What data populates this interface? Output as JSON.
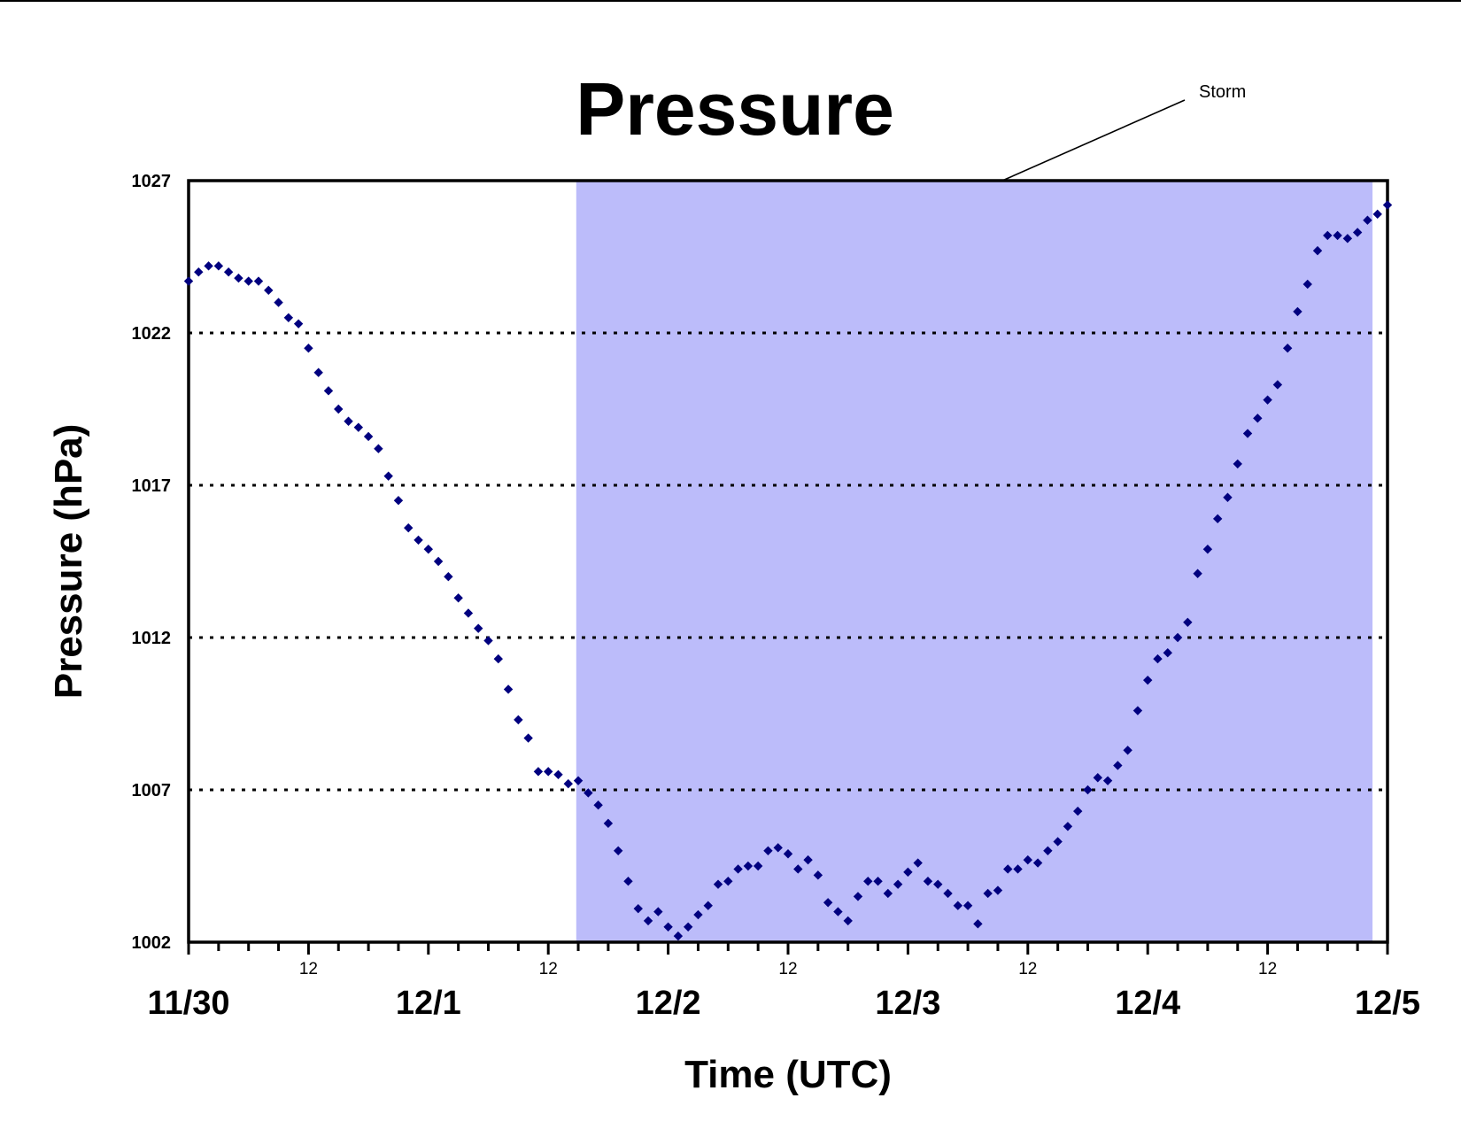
{
  "chart_data": {
    "type": "scatter",
    "title": "Pressure",
    "xlabel": "Time (UTC)",
    "ylabel": "Pressure (hPa)",
    "ylim": [
      1002,
      1027
    ],
    "yticks": [
      1002,
      1007,
      1012,
      1017,
      1022,
      1027
    ],
    "ytick_labels": [
      "1002",
      "1007",
      "1012",
      "1017",
      "1022",
      "1027"
    ],
    "x_unit": "hours since 11/30 00 UTC",
    "xlim": [
      0,
      120
    ],
    "x_major_ticks": [
      {
        "x": 0,
        "label": "11/30"
      },
      {
        "x": 24,
        "label": "12/1"
      },
      {
        "x": 48,
        "label": "12/2"
      },
      {
        "x": 72,
        "label": "12/3"
      },
      {
        "x": 96,
        "label": "12/4"
      },
      {
        "x": 120,
        "label": "12/5"
      }
    ],
    "x_minor_ticks": [
      {
        "x": 12,
        "label": "12"
      },
      {
        "x": 36,
        "label": "12"
      },
      {
        "x": 60,
        "label": "12"
      },
      {
        "x": 84,
        "label": "12"
      },
      {
        "x": 108,
        "label": "12"
      }
    ],
    "grid_y": [
      1007,
      1012,
      1017,
      1022
    ],
    "grid_style": "dotted",
    "shaded_region": {
      "label": "Storm",
      "x_start": 38.8,
      "x_end": 118.5,
      "color": "#bcbcfa"
    },
    "marker_color": "#00007f",
    "series": [
      {
        "x": [
          0,
          1,
          2,
          3,
          4,
          5,
          6,
          7,
          8,
          9,
          10,
          11,
          12,
          13,
          14,
          15,
          16,
          17,
          18,
          19,
          20,
          21,
          22,
          23,
          24,
          25,
          26,
          27,
          28,
          29,
          30,
          31,
          32,
          33,
          34,
          35,
          36,
          37,
          38,
          39,
          40,
          41,
          42,
          43,
          44,
          45,
          46,
          47,
          48,
          49,
          50,
          51,
          52,
          53,
          54,
          55,
          56,
          57,
          58,
          59,
          60,
          61,
          62,
          63,
          64,
          65,
          66,
          67,
          68,
          69,
          70,
          71,
          72,
          73,
          74,
          75,
          76,
          77,
          78,
          79,
          80,
          81,
          82,
          83,
          84,
          85,
          86,
          87,
          88,
          89,
          90,
          91,
          92,
          93,
          94,
          95,
          96,
          97,
          98,
          99,
          100,
          101,
          102,
          103,
          104,
          105,
          106,
          107,
          108,
          109,
          110,
          111,
          112,
          113,
          114,
          115,
          116,
          117,
          118,
          119,
          120
        ],
        "y": [
          1023.7,
          1024.0,
          1024.2,
          1024.2,
          1024.0,
          1023.8,
          1023.7,
          1023.7,
          1023.4,
          1023.0,
          1022.5,
          1022.3,
          1021.5,
          1020.7,
          1020.1,
          1019.5,
          1019.1,
          1018.9,
          1018.6,
          1018.2,
          1017.3,
          1016.5,
          1015.6,
          1015.2,
          1014.9,
          1014.5,
          1014.0,
          1013.3,
          1012.8,
          1012.3,
          1011.9,
          1011.3,
          1010.3,
          1009.3,
          1008.7,
          1007.6,
          1007.6,
          1007.5,
          1007.2,
          1007.3,
          1006.9,
          1006.5,
          1005.9,
          1005.0,
          1004.0,
          1003.1,
          1002.7,
          1003.0,
          1002.5,
          1002.2,
          1002.5,
          1002.9,
          1003.2,
          1003.9,
          1004.0,
          1004.4,
          1004.5,
          1004.5,
          1005.0,
          1005.1,
          1004.9,
          1004.4,
          1004.7,
          1004.2,
          1003.3,
          1003.0,
          1002.7,
          1003.5,
          1004.0,
          1004.0,
          1003.6,
          1003.9,
          1004.3,
          1004.6,
          1004.0,
          1003.9,
          1003.6,
          1003.2,
          1003.2,
          1002.6,
          1003.6,
          1003.7,
          1004.4,
          1004.4,
          1004.7,
          1004.6,
          1005.0,
          1005.3,
          1005.8,
          1006.3,
          1007.0,
          1007.4,
          1007.3,
          1007.8,
          1008.3,
          1009.6,
          1010.6,
          1011.3,
          1011.5,
          1012.0,
          1012.5,
          1014.1,
          1014.9,
          1015.9,
          1016.6,
          1017.7,
          1018.7,
          1019.2,
          1019.8,
          1020.3,
          1021.5,
          1022.7,
          1023.6,
          1024.7,
          1025.2,
          1025.2,
          1025.1,
          1025.3,
          1025.7,
          1025.9,
          1026.2
        ]
      }
    ]
  }
}
